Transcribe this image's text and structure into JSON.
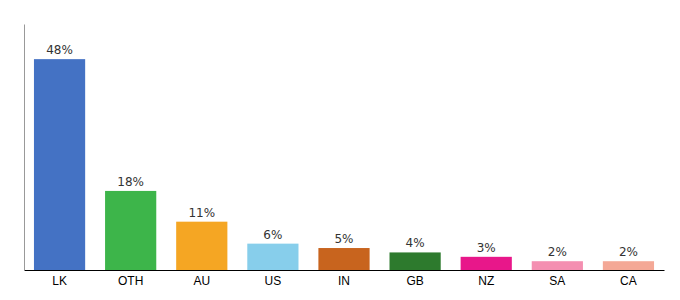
{
  "chart_data": {
    "type": "bar",
    "categories": [
      "LK",
      "OTH",
      "AU",
      "US",
      "IN",
      "GB",
      "NZ",
      "SA",
      "CA"
    ],
    "values": [
      48,
      18,
      11,
      6,
      5,
      4,
      3,
      2,
      2
    ],
    "value_labels": [
      "48%",
      "18%",
      "11%",
      "6%",
      "5%",
      "4%",
      "3%",
      "2%",
      "2%"
    ],
    "colors": [
      "#4472c4",
      "#3db54a",
      "#f5a623",
      "#87ceeb",
      "#c8641e",
      "#2d7a2d",
      "#e8178a",
      "#f48fb1",
      "#f4a896"
    ],
    "ylim": [
      0,
      56
    ],
    "data_labels": true,
    "tick_labels": "x",
    "grid": false
  }
}
